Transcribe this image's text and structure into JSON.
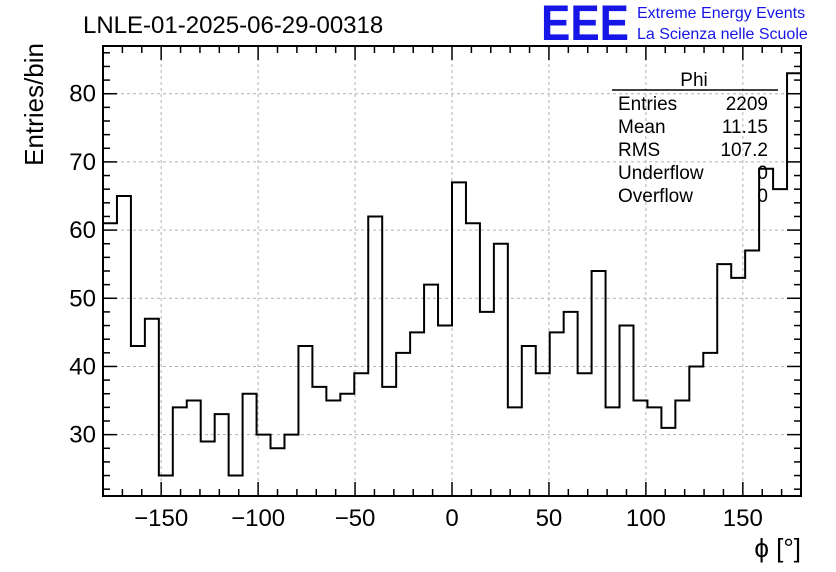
{
  "title": "LNLE-01-2025-06-29-00318",
  "logo": {
    "mark": "EEE",
    "line1": "Extreme Energy Events",
    "line2": "La Scienza nelle Scuole",
    "color": "#1616e6"
  },
  "stats_box": {
    "name": "Phi",
    "rows": [
      {
        "label": "Entries",
        "value": "2209"
      },
      {
        "label": "Mean",
        "value": "11.15"
      },
      {
        "label": "RMS",
        "value": "107.2"
      },
      {
        "label": "Underflow",
        "value": "0"
      },
      {
        "label": "Overflow",
        "value": "0"
      }
    ]
  },
  "chart_data": {
    "type": "histogram",
    "title": "LNLE-01-2025-06-29-00318",
    "xlabel": "ϕ [°]",
    "ylabel": "Entries/bin",
    "xlim": [
      -180,
      180
    ],
    "ylim": [
      21,
      87
    ],
    "bin_width": 7.2,
    "x_ticks": [
      -150,
      -100,
      -50,
      0,
      50,
      100,
      150
    ],
    "x_tick_labels": [
      "−150",
      "−100",
      "−50",
      "0",
      "50",
      "100",
      "150"
    ],
    "y_ticks": [
      30,
      40,
      50,
      60,
      70,
      80
    ],
    "y_tick_labels": [
      "30",
      "40",
      "50",
      "60",
      "70",
      "80"
    ],
    "grid": true,
    "values": [
      61,
      65,
      43,
      47,
      24,
      34,
      35,
      29,
      33,
      24,
      36,
      30,
      28,
      30,
      43,
      37,
      35,
      36,
      39,
      62,
      37,
      42,
      45,
      52,
      46,
      67,
      61,
      48,
      58,
      34,
      43,
      39,
      45,
      48,
      39,
      54,
      34,
      46,
      35,
      34,
      31,
      35,
      40,
      42,
      55,
      53,
      57,
      69,
      66,
      83
    ]
  }
}
